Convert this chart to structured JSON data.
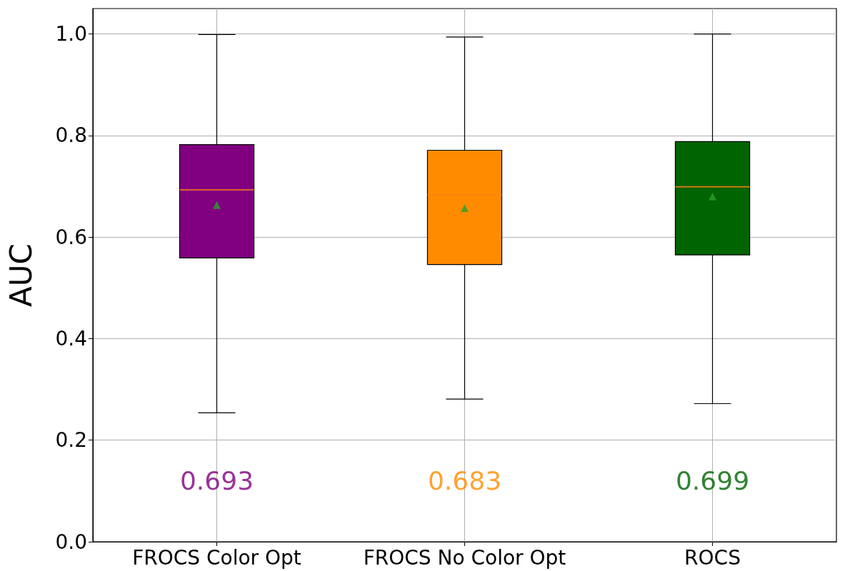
{
  "chart_data": {
    "type": "box",
    "ylabel": "AUC",
    "categories": [
      "FROCS Color Opt",
      "FROCS No Color Opt",
      "ROCS"
    ],
    "colors": [
      "#800080",
      "#ff8c00",
      "#006400"
    ],
    "boxes": [
      {
        "low": 0.254,
        "q1": 0.559,
        "median": 0.693,
        "q3": 0.782,
        "high": 0.999,
        "mean": 0.663
      },
      {
        "low": 0.281,
        "q1": 0.546,
        "median": 0.683,
        "q3": 0.771,
        "high": 0.994,
        "mean": 0.657
      },
      {
        "low": 0.272,
        "q1": 0.565,
        "median": 0.699,
        "q3": 0.788,
        "high": 1.0,
        "mean": 0.68
      }
    ],
    "annotations": [
      "0.693",
      "0.683",
      "0.699"
    ],
    "ylim": [
      0,
      1.05
    ],
    "yticks": [
      {
        "value": 0,
        "label": "0.0"
      },
      {
        "value": 0.2,
        "label": "0.2"
      },
      {
        "value": 0.4,
        "label": "0.4"
      },
      {
        "value": 0.6,
        "label": "0.6"
      },
      {
        "value": 0.8,
        "label": "0.8"
      },
      {
        "value": 1,
        "label": "1.0"
      }
    ],
    "grid": true,
    "marker": "triangle"
  }
}
